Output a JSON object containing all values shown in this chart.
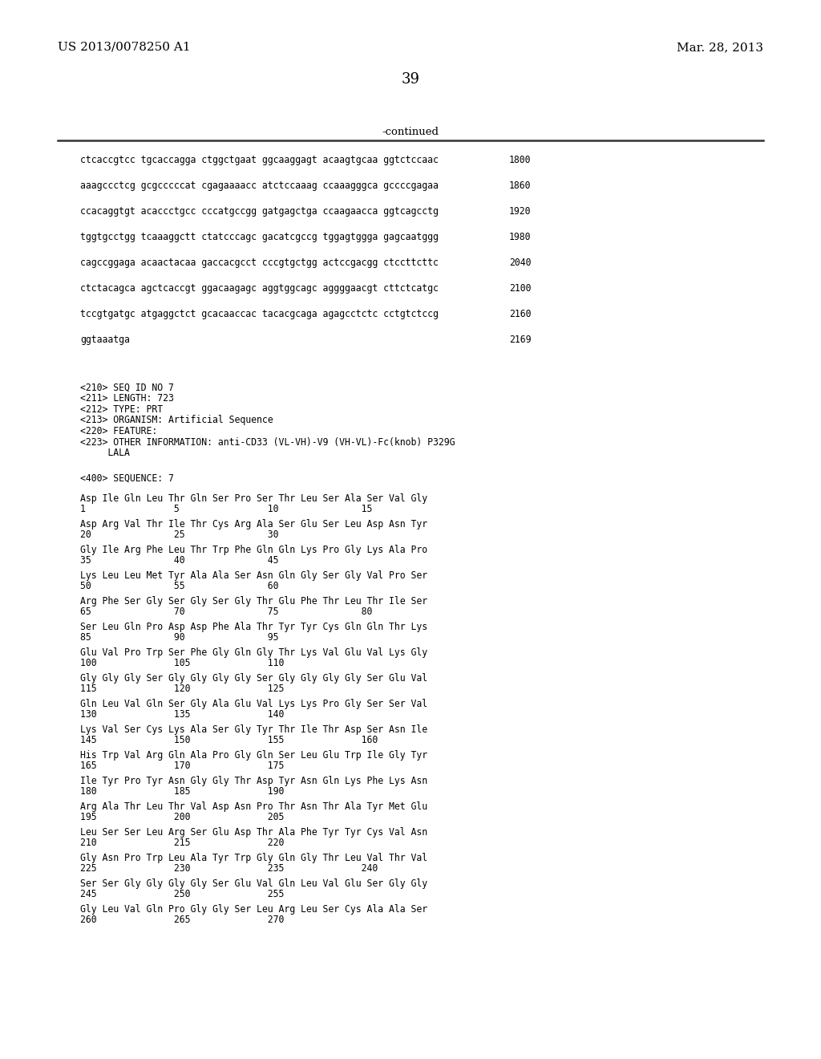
{
  "patent_number": "US 2013/0078250 A1",
  "patent_date": "Mar. 28, 2013",
  "page_number": "39",
  "continued_label": "-continued",
  "background_color": "#ffffff",
  "text_color": "#000000",
  "sequence_lines": [
    [
      "ctcaccgtcc tgcaccagga ctggctgaat ggcaaggagt acaagtgcaa ggtctccaac",
      "1800"
    ],
    [
      "aaagccctcg gcgcccccat cgagaaaacc atctccaaag ccaaagggca gccccgagaa",
      "1860"
    ],
    [
      "ccacaggtgt acaccctgcc cccatgccgg gatgagctga ccaagaacca ggtcagcctg",
      "1920"
    ],
    [
      "tggtgcctgg tcaaaggctt ctatcccagc gacatcgccg tggagtggga gagcaatggg",
      "1980"
    ],
    [
      "cagccggaga acaactacaa gaccacgcct cccgtgctgg actccgacgg ctccttcttc",
      "2040"
    ],
    [
      "ctctacagca agctcaccgt ggacaagagc aggtggcagc aggggaacgt cttctcatgc",
      "2100"
    ],
    [
      "tccgtgatgc atgaggctct gcacaaccac tacacgcaga agagcctctc cctgtctccg",
      "2160"
    ],
    [
      "ggtaaatga",
      "2169"
    ]
  ],
  "meta_lines": [
    "<210> SEQ ID NO 7",
    "<211> LENGTH: 723",
    "<212> TYPE: PRT",
    "<213> ORGANISM: Artificial Sequence",
    "<220> FEATURE:",
    "<223> OTHER INFORMATION: anti-CD33 (VL-VH)-V9 (VH-VL)-Fc(knob) P329G",
    "     LALA"
  ],
  "seq400_label": "<400> SEQUENCE: 7",
  "amino_acid_blocks": [
    {
      "seq": "Asp Ile Gln Leu Thr Gln Ser Pro Ser Thr Leu Ser Ala Ser Val Gly",
      "num": "1                5                10               15"
    },
    {
      "seq": "Asp Arg Val Thr Ile Thr Cys Arg Ala Ser Glu Ser Leu Asp Asn Tyr",
      "num": "20               25               30"
    },
    {
      "seq": "Gly Ile Arg Phe Leu Thr Trp Phe Gln Gln Lys Pro Gly Lys Ala Pro",
      "num": "35               40               45"
    },
    {
      "seq": "Lys Leu Leu Met Tyr Ala Ala Ser Asn Gln Gly Ser Gly Val Pro Ser",
      "num": "50               55               60"
    },
    {
      "seq": "Arg Phe Ser Gly Ser Gly Ser Gly Thr Glu Phe Thr Leu Thr Ile Ser",
      "num": "65               70               75               80"
    },
    {
      "seq": "Ser Leu Gln Pro Asp Asp Phe Ala Thr Tyr Tyr Cys Gln Gln Thr Lys",
      "num": "85               90               95"
    },
    {
      "seq": "Glu Val Pro Trp Ser Phe Gly Gln Gly Thr Lys Val Glu Val Lys Gly",
      "num": "100              105              110"
    },
    {
      "seq": "Gly Gly Gly Ser Gly Gly Gly Gly Ser Gly Gly Gly Gly Ser Glu Val",
      "num": "115              120              125"
    },
    {
      "seq": "Gln Leu Val Gln Ser Gly Ala Glu Val Lys Lys Pro Gly Ser Ser Val",
      "num": "130              135              140"
    },
    {
      "seq": "Lys Val Ser Cys Lys Ala Ser Gly Tyr Thr Ile Thr Asp Ser Asn Ile",
      "num": "145              150              155              160"
    },
    {
      "seq": "His Trp Val Arg Gln Ala Pro Gly Gln Ser Leu Glu Trp Ile Gly Tyr",
      "num": "165              170              175"
    },
    {
      "seq": "Ile Tyr Pro Tyr Asn Gly Gly Thr Asp Tyr Asn Gln Lys Phe Lys Asn",
      "num": "180              185              190"
    },
    {
      "seq": "Arg Ala Thr Leu Thr Val Asp Asn Pro Thr Asn Thr Ala Tyr Met Glu",
      "num": "195              200              205"
    },
    {
      "seq": "Leu Ser Ser Leu Arg Ser Glu Asp Thr Ala Phe Tyr Tyr Cys Val Asn",
      "num": "210              215              220"
    },
    {
      "seq": "Gly Asn Pro Trp Leu Ala Tyr Trp Gly Gln Gly Thr Leu Val Thr Val",
      "num": "225              230              235              240"
    },
    {
      "seq": "Ser Ser Gly Gly Gly Gly Ser Glu Val Gln Leu Val Glu Ser Gly Gly",
      "num": "245              250              255"
    },
    {
      "seq": "Gly Leu Val Gln Pro Gly Gly Ser Leu Arg Leu Ser Cys Ala Ala Ser",
      "num": "260              265              270"
    }
  ]
}
